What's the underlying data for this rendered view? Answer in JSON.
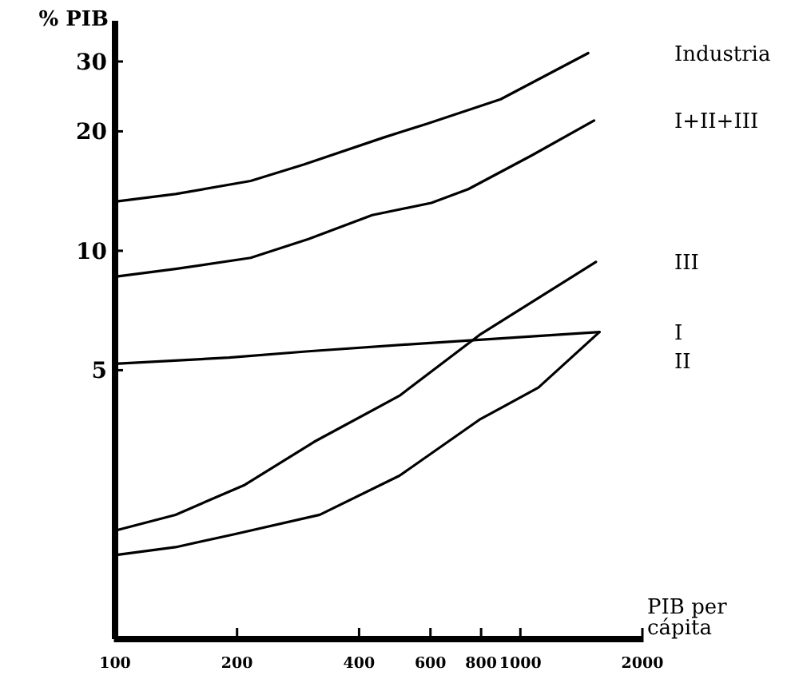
{
  "chart_data": {
    "type": "line",
    "ylabel": "% PIB",
    "xlabel": "PIB per cápita",
    "log": "xy",
    "xlim": [
      100,
      2000
    ],
    "ylim": [
      1.05,
      38
    ],
    "xticks": [
      100,
      200,
      400,
      600,
      800,
      1000,
      2000
    ],
    "yticks": [
      5,
      10,
      20,
      30
    ],
    "grid": false,
    "marker": "none",
    "line_style": "solid",
    "series": [
      {
        "name": "Industria",
        "color": "#000000",
        "x": [
          100,
          141,
          216,
          292,
          460,
          588,
          894,
          1470
        ],
        "values": [
          13.3,
          13.9,
          15.0,
          16.5,
          19.3,
          20.9,
          24.1,
          31.5
        ]
      },
      {
        "name": "I+II+III",
        "color": "#000000",
        "x": [
          100,
          141,
          216,
          300,
          431,
          603,
          744,
          1067,
          1520
        ],
        "values": [
          8.6,
          9.0,
          9.6,
          10.7,
          12.3,
          13.2,
          14.3,
          17.4,
          21.3
        ]
      },
      {
        "name": "III",
        "color": "#000000",
        "x": [
          100,
          141,
          209,
          310,
          503,
          792,
          1536
        ],
        "values": [
          1.97,
          2.16,
          2.57,
          3.3,
          4.31,
          6.13,
          9.37
        ]
      },
      {
        "name": "I",
        "color": "#000000",
        "x": [
          100,
          191,
          300,
          588,
          1567
        ],
        "values": [
          5.19,
          5.38,
          5.58,
          5.85,
          6.24
        ]
      },
      {
        "name": "II",
        "color": "#000000",
        "x": [
          100,
          141,
          197,
          320,
          503,
          792,
          1108,
          1567
        ],
        "values": [
          1.71,
          1.79,
          1.93,
          2.16,
          2.71,
          3.75,
          4.52,
          6.24
        ]
      }
    ]
  }
}
